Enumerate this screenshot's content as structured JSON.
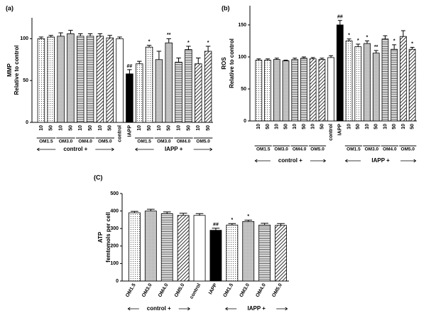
{
  "chart_data": [
    {
      "type": "bar",
      "panel_label": "(a)",
      "ylabel_lines": [
        "MMP",
        "Relative to control"
      ],
      "categories": [
        "10",
        "50",
        "10",
        "50",
        "10",
        "50",
        "10",
        "50",
        "control",
        "IAPP",
        "10",
        "50",
        "10",
        "50",
        "10",
        "50",
        "10",
        "50"
      ],
      "values": [
        100,
        102,
        103,
        106,
        103,
        103,
        103,
        101,
        100,
        58,
        70,
        90,
        75,
        95,
        72,
        87,
        70,
        85
      ],
      "errors": [
        2,
        2,
        4,
        4,
        3,
        3,
        3,
        3,
        2,
        5,
        3,
        2,
        10,
        5,
        5,
        4,
        7,
        6
      ],
      "annotations": [
        null,
        null,
        null,
        null,
        null,
        null,
        null,
        null,
        null,
        "##",
        null,
        "*",
        null,
        "**",
        null,
        "*",
        null,
        "*"
      ],
      "patterns": [
        "dots",
        "dots",
        "gray",
        "gray",
        "hlines",
        "hlines",
        "diag",
        "diag",
        "white",
        "black",
        "dots",
        "dots",
        "gray",
        "gray",
        "hlines",
        "hlines",
        "diag",
        "diag"
      ],
      "group_labels": [
        "OM1.5",
        "OM3.0",
        "OM4.0",
        "OM5.0",
        "OM1.5",
        "OM3.0",
        "OM4.0",
        "OM5.0"
      ],
      "brackets": [
        "control +",
        "IAPP +"
      ],
      "ylim": [
        0,
        125
      ],
      "yticks": [
        0,
        50,
        100
      ]
    },
    {
      "type": "bar",
      "panel_label": "(b)",
      "ylabel_lines": [
        "ROS",
        "Relative to control"
      ],
      "categories": [
        "10",
        "50",
        "10",
        "50",
        "10",
        "50",
        "10",
        "50",
        "control",
        "IAPP",
        "10",
        "50",
        "10",
        "50",
        "10",
        "50",
        "10",
        "50"
      ],
      "values": [
        95,
        95,
        96,
        94,
        96,
        98,
        97,
        96,
        99,
        150,
        125,
        116,
        121,
        106,
        128,
        112,
        132,
        112
      ],
      "errors": [
        2,
        2,
        2,
        1,
        2,
        2,
        2,
        2,
        3,
        7,
        3,
        4,
        4,
        4,
        5,
        7,
        9,
        3
      ],
      "annotations": [
        null,
        null,
        null,
        null,
        null,
        null,
        null,
        null,
        null,
        "##",
        "*",
        "*",
        "*",
        "**",
        null,
        "*",
        null,
        "*"
      ],
      "patterns": [
        "dots",
        "dots",
        "gray",
        "gray",
        "hlines",
        "hlines",
        "diag",
        "diag",
        "white",
        "black",
        "dots",
        "dots",
        "gray",
        "gray",
        "hlines",
        "hlines",
        "diag",
        "diag"
      ],
      "group_labels": [
        "OM1.5",
        "OM3.0",
        "OM4.0",
        "OM5.0",
        "OM1.5",
        "OM3.0",
        "OM4.0",
        "OM5.0"
      ],
      "brackets": [
        "control +",
        "IAPP +"
      ],
      "ylim": [
        0,
        180
      ],
      "yticks": [
        0,
        50,
        100,
        150
      ]
    },
    {
      "type": "bar",
      "panel_label": "(C)",
      "ylabel_lines": [
        "ATP",
        "femtomols per cell"
      ],
      "categories": [
        "OM1.5",
        "OM3.0",
        "OM4.0",
        "OM5.0",
        "control",
        "IAPP",
        "OM1.5",
        "OM3.0",
        "OM4.0",
        "OM5.0"
      ],
      "values": [
        390,
        400,
        385,
        375,
        375,
        290,
        320,
        340,
        320,
        318
      ],
      "errors": [
        8,
        10,
        10,
        12,
        10,
        12,
        8,
        8,
        10,
        10
      ],
      "annotations": [
        null,
        null,
        null,
        null,
        null,
        "##",
        "*",
        "*",
        null,
        null
      ],
      "patterns": [
        "dots",
        "gray",
        "hlines",
        "diag",
        "white",
        "black",
        "dots",
        "gray",
        "hlines",
        "diag"
      ],
      "brackets": [
        "control +",
        "IAPP +"
      ],
      "ylim": [
        0,
        500
      ],
      "yticks": [
        0,
        100,
        200,
        300,
        400,
        500
      ]
    }
  ]
}
